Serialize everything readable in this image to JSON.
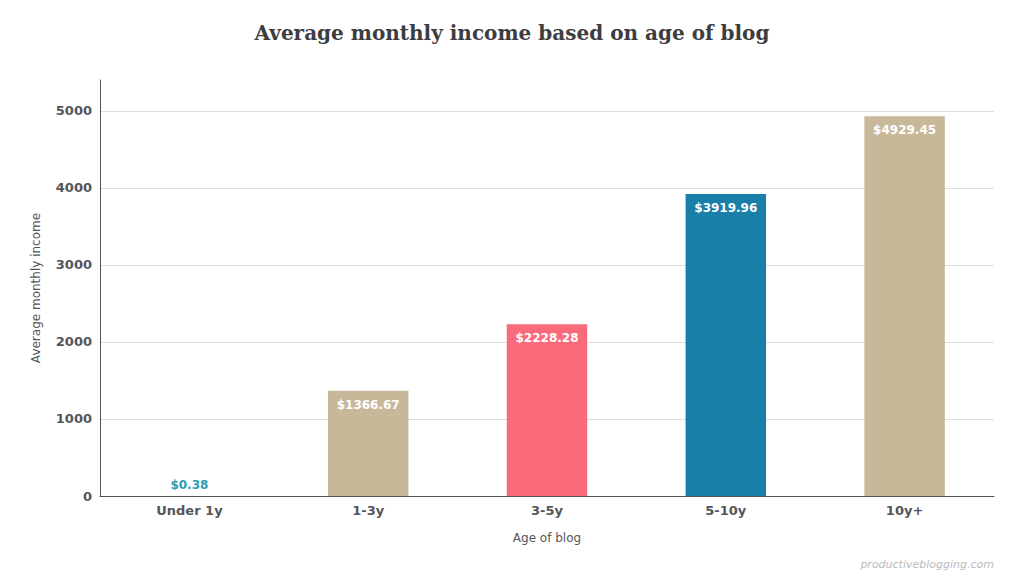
{
  "chart_data": {
    "type": "bar",
    "title": "Average monthly income based on age of blog",
    "xlabel": "Age of blog",
    "ylabel": "Average monthly income",
    "categories": [
      "Under 1y",
      "1-3y",
      "3-5y",
      "5-10y",
      "10y+"
    ],
    "values": [
      0.38,
      1366.67,
      2228.28,
      3919.96,
      4929.45
    ],
    "value_labels": [
      "$0.38",
      "$1366.67",
      "$2228.28",
      "$3919.96",
      "$4929.45"
    ],
    "data_labels": true,
    "colors": [
      "#2a9db5",
      "#c8b89a",
      "#f96b7a",
      "#1a7fa8",
      "#c8b89a"
    ],
    "ylim": [
      0,
      5400
    ],
    "yticks": [
      0,
      1000,
      2000,
      3000,
      4000,
      5000
    ],
    "grid": true,
    "annotations": [
      "productiveblogging.com"
    ]
  }
}
